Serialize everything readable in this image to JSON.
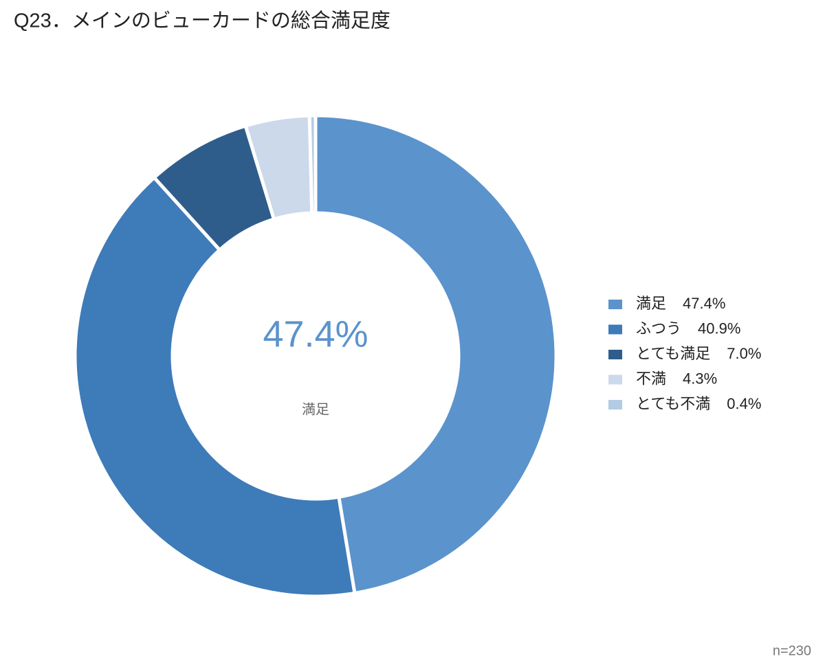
{
  "chart_data": {
    "type": "pie",
    "title": "Q23．メインのビューカードの総合満足度",
    "categories": [
      "満足",
      "ふつう",
      "とても満足",
      "不満",
      "とても不満"
    ],
    "values": [
      47.4,
      40.9,
      7.0,
      4.3,
      0.4
    ],
    "value_labels": [
      "47.4%",
      "40.9%",
      "7.0%",
      "4.3%",
      "0.4%"
    ],
    "colors": [
      "#5b93cc",
      "#3e7bb9",
      "#2f5d8b",
      "#ccd9eb",
      "#b3cbe5"
    ],
    "donut": true,
    "legend": "right",
    "note": "n=230"
  }
}
